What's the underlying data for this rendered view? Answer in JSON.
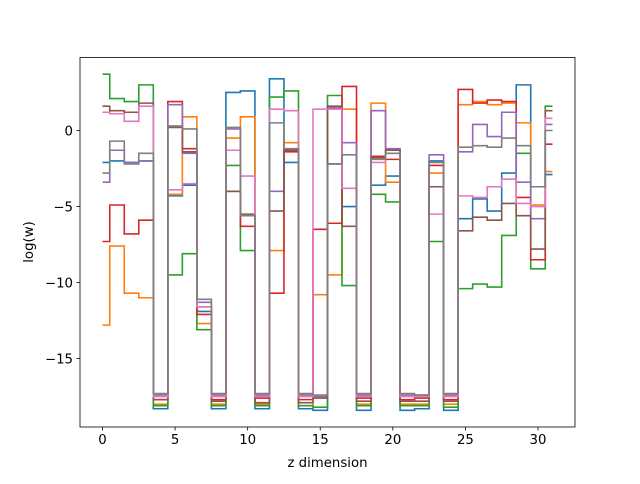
{
  "chart_data": {
    "type": "line",
    "drawstyle": "steps-mid",
    "title": "",
    "xlabel": "z dimension",
    "ylabel": "log(w)",
    "xlim": [
      -1.55,
      32.55
    ],
    "ylim": [
      -19.5,
      4.8
    ],
    "xticks": [
      0,
      5,
      10,
      15,
      20,
      25,
      30
    ],
    "yticks": [
      -15,
      -10,
      -5,
      0
    ],
    "ytick_labels": [
      "−15",
      "−10",
      "−5",
      "0"
    ],
    "xtick_labels": [
      "0",
      "5",
      "10",
      "15",
      "20",
      "25",
      "30"
    ],
    "grid": false,
    "legend": "none",
    "colors": [
      "#1f77b4",
      "#ff7f0e",
      "#2ca02c",
      "#d62728",
      "#9467bd",
      "#8c564b",
      "#e377c2",
      "#7f7f7f"
    ],
    "x": [
      0,
      1,
      2,
      3,
      4,
      5,
      6,
      7,
      8,
      9,
      10,
      11,
      12,
      13,
      14,
      15,
      16,
      17,
      18,
      19,
      20,
      21,
      22,
      23,
      24,
      25,
      26,
      27,
      28,
      29,
      30,
      31
    ],
    "series": [
      {
        "values": [
          -2.1,
          -2.0,
          -2.1,
          -2.0,
          -18.3,
          -4.3,
          -3.6,
          -11.9,
          -18.3,
          2.5,
          2.6,
          -18.3,
          3.4,
          -2.1,
          -18.3,
          -18.4,
          -2.2,
          -5.0,
          -18.4,
          -3.6,
          -3.0,
          -18.4,
          -18.3,
          -2.0,
          -18.4,
          -5.8,
          -4.5,
          -5.3,
          -2.8,
          3.0,
          -3.7,
          -2.9
        ]
      },
      {
        "values": [
          -12.8,
          -7.6,
          -10.7,
          -11.0,
          -18.0,
          -4.2,
          0.9,
          -12.7,
          -18.0,
          -0.5,
          0.9,
          -18.0,
          -7.9,
          -0.8,
          -18.1,
          -10.8,
          -9.5,
          1.4,
          -18.0,
          1.8,
          -3.4,
          -18.0,
          -18.0,
          -2.8,
          -18.0,
          1.7,
          1.9,
          1.7,
          1.8,
          0.5,
          -4.9,
          -2.7
        ]
      },
      {
        "values": [
          3.7,
          2.1,
          1.9,
          3.0,
          -18.1,
          -9.5,
          -8.1,
          -13.1,
          -18.1,
          -2.3,
          -7.9,
          -18.1,
          2.2,
          2.6,
          -18.1,
          -18.2,
          2.3,
          -10.2,
          -18.1,
          -4.2,
          -4.7,
          -18.1,
          -18.1,
          -7.3,
          -18.2,
          -10.4,
          -10.1,
          -10.3,
          -6.9,
          -1.5,
          -9.1,
          1.6
        ]
      },
      {
        "values": [
          -7.3,
          -4.9,
          -6.8,
          -5.9,
          -17.7,
          1.9,
          -1.2,
          -12.1,
          -17.7,
          -4.0,
          -6.3,
          -17.6,
          -10.7,
          -1.4,
          -17.7,
          -6.5,
          -6.1,
          2.9,
          -17.6,
          -1.7,
          -1.9,
          -17.7,
          -17.6,
          -2.3,
          -17.7,
          2.7,
          1.8,
          2.0,
          1.9,
          -4.4,
          -8.5,
          -0.9
        ]
      },
      {
        "values": [
          -3.4,
          -1.3,
          -2.1,
          -2.0,
          -17.4,
          1.7,
          -1.5,
          -11.3,
          -17.4,
          0.1,
          -5.6,
          -17.4,
          -4.0,
          -1.3,
          -17.4,
          -17.5,
          1.5,
          -0.8,
          -17.4,
          1.3,
          -1.2,
          -17.4,
          -17.4,
          -1.6,
          -17.4,
          -1.4,
          0.4,
          -0.4,
          1.2,
          -3.4,
          -5.8,
          0.4
        ]
      },
      {
        "values": [
          1.6,
          1.3,
          1.2,
          1.8,
          -17.7,
          0.2,
          -1.4,
          -11.6,
          -17.8,
          -4.0,
          -5.5,
          -17.9,
          -5.3,
          -1.3,
          -17.9,
          -17.6,
          1.6,
          -6.3,
          -17.8,
          -1.8,
          -1.3,
          -17.8,
          -17.8,
          -3.7,
          -17.8,
          -6.6,
          -5.7,
          -5.9,
          -4.8,
          -5.6,
          -7.8,
          1.3
        ]
      },
      {
        "values": [
          1.2,
          1.1,
          0.6,
          1.6,
          -17.5,
          -3.9,
          -3.5,
          -11.6,
          -17.5,
          -1.3,
          -3.0,
          -17.5,
          1.4,
          1.3,
          -17.5,
          1.4,
          1.4,
          -3.8,
          -17.5,
          -2.1,
          -1.5,
          -17.5,
          -17.5,
          -5.5,
          -17.5,
          -4.3,
          -4.4,
          -3.7,
          -3.2,
          -4.8,
          -5.0,
          0.8
        ]
      },
      {
        "values": [
          -2.8,
          -0.7,
          -2.2,
          -1.5,
          -17.3,
          0.3,
          0.1,
          -11.1,
          -17.3,
          0.2,
          -5.6,
          -17.3,
          0.5,
          -1.2,
          -17.3,
          -17.4,
          -2.2,
          -1.6,
          -17.3,
          -1.9,
          -1.5,
          -17.3,
          -17.4,
          -2.1,
          -17.3,
          -1.1,
          -1.0,
          -1.1,
          -0.5,
          -1.0,
          -3.7,
          0.0
        ]
      }
    ]
  }
}
